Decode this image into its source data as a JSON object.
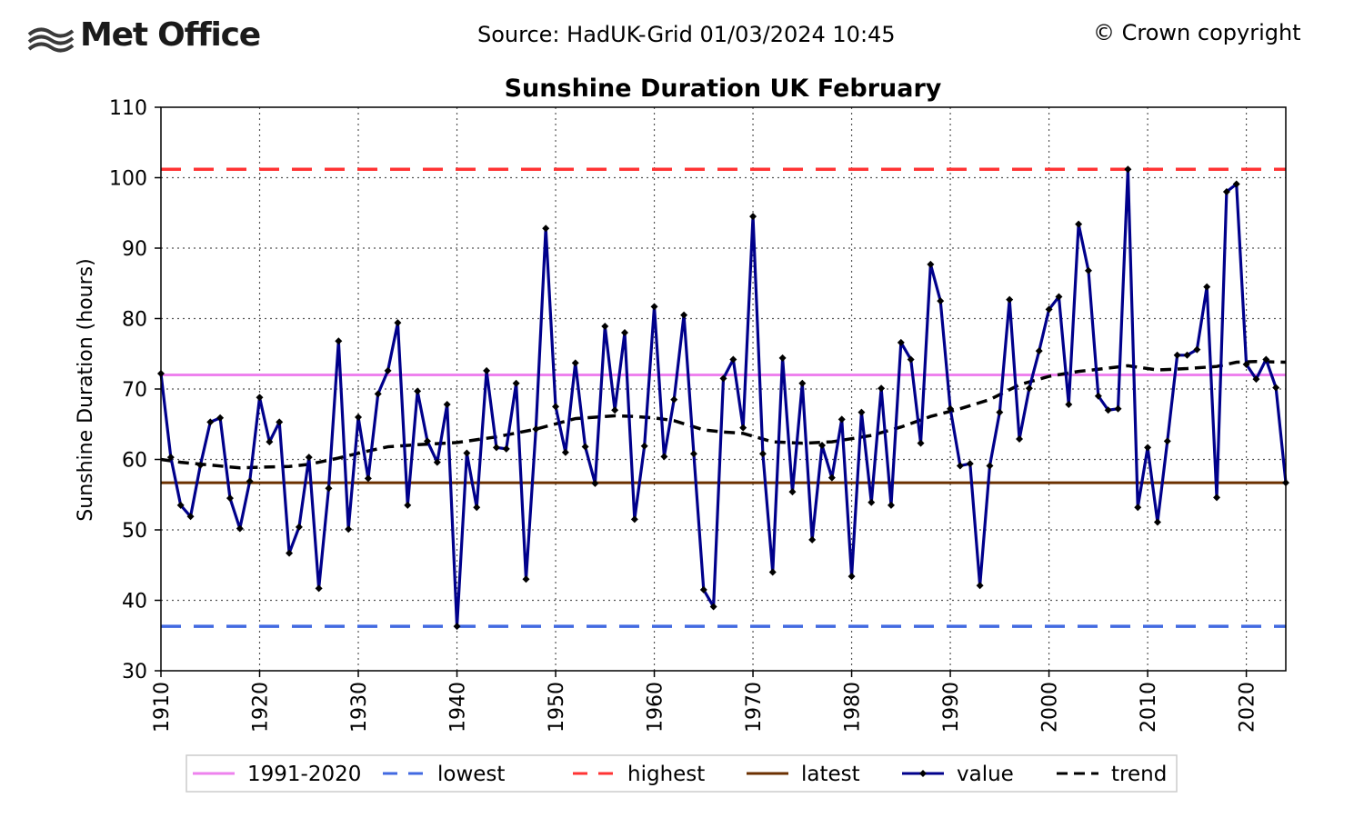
{
  "header": {
    "logo_text": "Met Office",
    "source": "Source: HadUK-Grid 01/03/2024 10:45",
    "copyright": "© Crown copyright"
  },
  "colors": {
    "baseline": "#ee82ee",
    "lowest": "#4169e1",
    "highest": "#ff3333",
    "latest": "#6b3000",
    "value": "#00008b",
    "trend": "#000000"
  },
  "chart_data": {
    "type": "line",
    "title": "Sunshine Duration UK February",
    "xlabel": "",
    "ylabel": "Sunshine Duration (hours)",
    "xlim": [
      1910,
      2024
    ],
    "ylim": [
      30,
      110
    ],
    "x_ticks": [
      1910,
      1920,
      1930,
      1940,
      1950,
      1960,
      1970,
      1980,
      1990,
      2000,
      2010,
      2020
    ],
    "y_ticks": [
      30,
      40,
      50,
      60,
      70,
      80,
      90,
      100,
      110
    ],
    "grid": true,
    "legend_position": "bottom",
    "reference_lines": [
      {
        "name": "1991-2020",
        "value": 72.0
      },
      {
        "name": "lowest",
        "value": 36.3
      },
      {
        "name": "highest",
        "value": 101.2
      },
      {
        "name": "latest",
        "value": 56.7
      }
    ],
    "series": [
      {
        "name": "value",
        "x": [
          1910,
          1911,
          1912,
          1913,
          1914,
          1915,
          1916,
          1917,
          1918,
          1919,
          1920,
          1921,
          1922,
          1923,
          1924,
          1925,
          1926,
          1927,
          1928,
          1929,
          1930,
          1931,
          1932,
          1933,
          1934,
          1935,
          1936,
          1937,
          1938,
          1939,
          1940,
          1941,
          1942,
          1943,
          1944,
          1945,
          1946,
          1947,
          1948,
          1949,
          1950,
          1951,
          1952,
          1953,
          1954,
          1955,
          1956,
          1957,
          1958,
          1959,
          1960,
          1961,
          1962,
          1963,
          1964,
          1965,
          1966,
          1967,
          1968,
          1969,
          1970,
          1971,
          1972,
          1973,
          1974,
          1975,
          1976,
          1977,
          1978,
          1979,
          1980,
          1981,
          1982,
          1983,
          1984,
          1985,
          1986,
          1987,
          1988,
          1989,
          1990,
          1991,
          1992,
          1993,
          1994,
          1995,
          1996,
          1997,
          1998,
          1999,
          2000,
          2001,
          2002,
          2003,
          2004,
          2005,
          2006,
          2007,
          2008,
          2009,
          2010,
          2011,
          2012,
          2013,
          2014,
          2015,
          2016,
          2017,
          2018,
          2019,
          2020,
          2021,
          2022,
          2023,
          2024
        ],
        "y": [
          72.2,
          60.3,
          53.5,
          51.9,
          59.2,
          65.3,
          65.9,
          54.5,
          50.2,
          56.9,
          68.8,
          62.5,
          65.3,
          46.7,
          50.4,
          60.3,
          41.7,
          55.9,
          76.8,
          50.1,
          66.0,
          57.3,
          69.3,
          72.6,
          79.4,
          53.5,
          69.7,
          62.6,
          59.6,
          67.8,
          36.3,
          60.9,
          53.2,
          72.6,
          61.7,
          61.5,
          70.8,
          43.0,
          64.3,
          92.8,
          67.5,
          61.0,
          73.7,
          61.8,
          56.6,
          78.9,
          67.0,
          78.0,
          51.5,
          61.9,
          81.7,
          60.4,
          68.5,
          80.5,
          60.8,
          41.5,
          39.1,
          71.5,
          74.2,
          64.5,
          94.5,
          60.8,
          44.0,
          74.4,
          55.4,
          70.8,
          48.6,
          62.0,
          57.4,
          65.7,
          43.4,
          66.7,
          53.9,
          70.1,
          53.5,
          76.6,
          74.2,
          62.3,
          87.7,
          82.5,
          67.2,
          59.1,
          59.4,
          42.1,
          59.1,
          66.7,
          82.7,
          62.9,
          70.1,
          75.4,
          81.3,
          83.1,
          67.8,
          93.4,
          86.8,
          69.0,
          67.0,
          67.2,
          101.2,
          53.2,
          61.7,
          51.1,
          62.6,
          74.8,
          74.8,
          75.6,
          84.5,
          54.6,
          98.0,
          99.1,
          73.5,
          71.4,
          74.2,
          70.2,
          56.7
        ]
      },
      {
        "name": "trend",
        "x": [
          1910,
          1912,
          1915,
          1918,
          1920,
          1923,
          1925,
          1928,
          1931,
          1933,
          1936,
          1940,
          1944,
          1948,
          1952,
          1956,
          1958,
          1960,
          1962,
          1965,
          1967,
          1969,
          1972,
          1975,
          1978,
          1982,
          1985,
          1988,
          1991,
          1994,
          1997,
          2000,
          2003,
          2005,
          2008,
          2011,
          2014,
          2017,
          2019,
          2021,
          2024
        ],
        "y": [
          60.0,
          59.6,
          59.2,
          58.8,
          58.9,
          59.0,
          59.3,
          60.2,
          61.2,
          61.8,
          62.1,
          62.4,
          63.2,
          64.3,
          65.8,
          66.2,
          66.1,
          65.9,
          65.5,
          64.2,
          63.9,
          63.7,
          62.5,
          62.3,
          62.5,
          63.4,
          64.6,
          66.1,
          67.2,
          68.5,
          70.6,
          71.8,
          72.5,
          72.8,
          73.3,
          72.7,
          72.9,
          73.2,
          73.8,
          73.9,
          73.8
        ]
      }
    ]
  }
}
